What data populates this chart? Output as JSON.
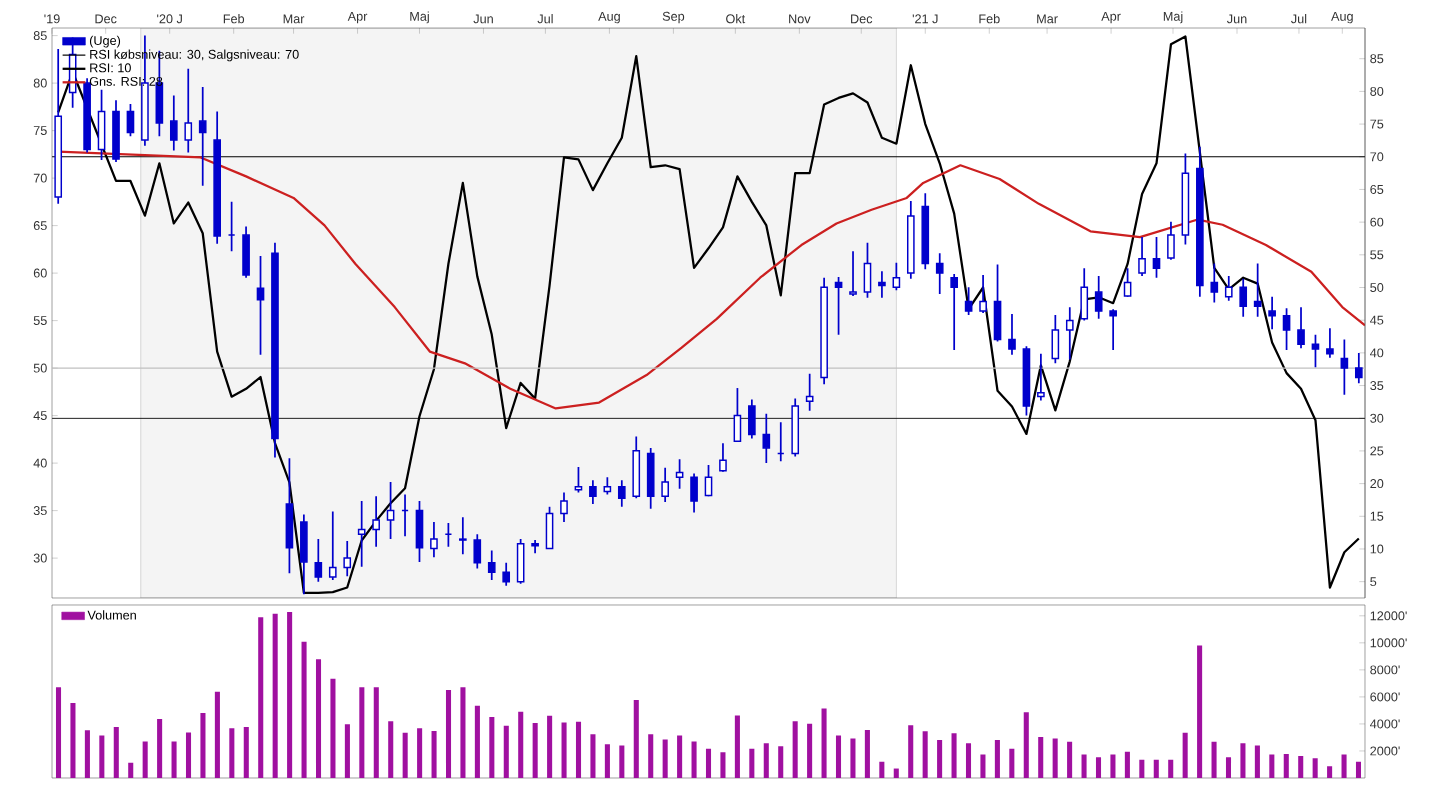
{
  "chart_data": [
    {
      "type": "candlestick",
      "x": [
        "2019-11-22",
        "2019-11-29",
        "2019-12-06",
        "2019-12-13",
        "2019-12-20",
        "2019-12-27",
        "2020-01-03",
        "2020-01-10",
        "2020-01-17",
        "2020-01-24",
        "2020-01-31",
        "2020-02-07",
        "2020-02-14",
        "2020-02-21",
        "2020-02-28",
        "2020-03-06",
        "2020-03-13",
        "2020-03-20",
        "2020-03-27",
        "2020-04-03",
        "2020-04-10",
        "2020-04-17",
        "2020-04-24",
        "2020-05-01",
        "2020-05-08",
        "2020-05-15",
        "2020-05-22",
        "2020-05-29",
        "2020-06-05",
        "2020-06-12",
        "2020-06-19",
        "2020-06-26",
        "2020-07-03",
        "2020-07-10",
        "2020-07-17",
        "2020-07-24",
        "2020-07-31",
        "2020-08-07",
        "2020-08-14",
        "2020-08-21",
        "2020-08-28",
        "2020-09-04",
        "2020-09-11",
        "2020-09-18",
        "2020-09-25",
        "2020-10-02",
        "2020-10-09",
        "2020-10-16",
        "2020-10-23",
        "2020-10-30",
        "2020-11-06",
        "2020-11-13",
        "2020-11-20",
        "2020-11-27",
        "2020-12-04",
        "2020-12-11",
        "2020-12-18",
        "2020-12-25",
        "2021-01-01",
        "2021-01-08",
        "2021-01-15",
        "2021-01-22",
        "2021-01-29",
        "2021-02-05",
        "2021-02-12",
        "2021-02-19",
        "2021-02-26",
        "2021-03-05",
        "2021-03-12",
        "2021-03-19",
        "2021-03-26",
        "2021-04-02",
        "2021-04-09",
        "2021-04-16",
        "2021-04-23",
        "2021-04-30",
        "2021-05-07",
        "2021-05-14",
        "2021-05-21",
        "2021-05-28",
        "2021-06-04",
        "2021-06-11",
        "2021-06-18",
        "2021-06-25",
        "2021-07-02",
        "2021-07-09",
        "2021-07-16",
        "2021-07-23",
        "2021-07-30",
        "2021-08-06",
        "2021-08-13"
      ],
      "xlim": [
        "2019-11-19",
        "2021-08-16"
      ],
      "xticks": [
        {
          "value": "2019-11-19",
          "label": "'19"
        },
        {
          "value": "2019-12-15",
          "label": "Dec"
        },
        {
          "value": "2020-01-15",
          "label": "'20 J"
        },
        {
          "value": "2020-02-15",
          "label": "Feb"
        },
        {
          "value": "2020-03-15",
          "label": "Mar"
        },
        {
          "value": "2020-04-15",
          "label": "Apr"
        },
        {
          "value": "2020-05-15",
          "label": "Maj"
        },
        {
          "value": "2020-06-15",
          "label": "Jun"
        },
        {
          "value": "2020-07-15",
          "label": "Jul"
        },
        {
          "value": "2020-08-15",
          "label": "Aug"
        },
        {
          "value": "2020-09-15",
          "label": "Sep"
        },
        {
          "value": "2020-10-15",
          "label": "Okt"
        },
        {
          "value": "2020-11-15",
          "label": "Nov"
        },
        {
          "value": "2020-12-15",
          "label": "Dec"
        },
        {
          "value": "2021-01-15",
          "label": "'21 J"
        },
        {
          "value": "2021-02-15",
          "label": "Feb"
        },
        {
          "value": "2021-03-15",
          "label": "Mar"
        },
        {
          "value": "2021-04-15",
          "label": "Apr"
        },
        {
          "value": "2021-05-15",
          "label": "Maj"
        },
        {
          "value": "2021-06-15",
          "label": "Jun"
        },
        {
          "value": "2021-07-15",
          "label": "Jul"
        },
        {
          "value": "2021-08-05",
          "label": "Aug"
        }
      ],
      "ylim": [
        25.8,
        85.8
      ],
      "yticks": [
        30,
        35,
        40,
        45,
        50,
        55,
        60,
        65,
        70,
        75,
        80,
        85
      ],
      "y2lim": [
        2.5,
        89.7
      ],
      "y2ticks": [
        5,
        10,
        15,
        20,
        25,
        30,
        35,
        40,
        45,
        50,
        55,
        60,
        65,
        70,
        75,
        80,
        85
      ],
      "legend": "top left",
      "bands": [
        {
          "axis": "x",
          "from": "2020-01-01",
          "to": "2021-01-01",
          "color": "#f4f4f4"
        }
      ],
      "ref_lines": [
        {
          "axis": "y2",
          "value": 30,
          "label": "RSI købsniveau: 30, Salgsniveau: 70",
          "color": "#000000"
        },
        {
          "axis": "y2",
          "value": 70,
          "color": "#000000"
        },
        {
          "axis": "y",
          "value": 50,
          "color": "#c0c0c0"
        }
      ],
      "series": [
        {
          "name": "(Uge)",
          "type": "candlestick",
          "color": "#0000cc",
          "ohlc": [
            [
              68,
              83.6,
              67.3,
              76.5
            ],
            [
              79,
              84.8,
              77.4,
              83
            ],
            [
              80,
              80.5,
              72.7,
              73
            ],
            [
              73,
              79.3,
              71.9,
              77
            ],
            [
              77,
              78.2,
              71.7,
              72
            ],
            [
              77,
              77.8,
              74.4,
              74.8
            ],
            [
              74,
              85,
              73.4,
              80
            ],
            [
              80,
              83.4,
              74.4,
              75.8
            ],
            [
              76,
              78.7,
              72.9,
              74
            ],
            [
              74,
              81.5,
              72.7,
              75.8
            ],
            [
              76,
              79.6,
              69.2,
              74.8
            ],
            [
              74,
              77,
              63.1,
              63.9
            ],
            [
              64,
              67.5,
              62.3,
              64
            ],
            [
              64,
              64.9,
              59.5,
              59.8
            ],
            [
              58.4,
              61.8,
              51.4,
              57.2
            ],
            [
              62.1,
              63.2,
              40.6,
              42.6
            ],
            [
              35.7,
              40.5,
              28.4,
              31.1
            ],
            [
              33.8,
              34.6,
              26.2,
              29.6
            ],
            [
              29.5,
              32,
              27.5,
              28
            ],
            [
              28,
              34.9,
              27.7,
              29
            ],
            [
              29,
              31.8,
              28.1,
              30
            ],
            [
              32.5,
              36,
              29.1,
              33
            ],
            [
              33,
              36.5,
              31.2,
              34
            ],
            [
              34,
              38,
              32,
              35
            ],
            [
              35,
              36.7,
              32.3,
              35
            ],
            [
              35,
              36,
              29.6,
              31.1
            ],
            [
              31,
              33.8,
              30.1,
              32
            ],
            [
              32.5,
              33.7,
              31.2,
              32.5
            ],
            [
              32,
              34.3,
              30.4,
              31.9
            ],
            [
              31.9,
              32.5,
              28.9,
              29.5
            ],
            [
              29.5,
              30.8,
              27.7,
              28.5
            ],
            [
              28.5,
              29.5,
              27.1,
              27.5
            ],
            [
              27.5,
              32,
              27.3,
              31.5
            ],
            [
              31.5,
              31.9,
              30.5,
              31.3
            ],
            [
              31,
              35.4,
              31,
              34.7
            ],
            [
              34.7,
              36.9,
              33.8,
              36
            ],
            [
              37.2,
              39.6,
              36.9,
              37.5
            ],
            [
              37.5,
              38.2,
              35.7,
              36.5
            ],
            [
              37,
              38.5,
              36.7,
              37.5
            ],
            [
              37.5,
              38.2,
              35.4,
              36.3
            ],
            [
              36.5,
              42.8,
              36.3,
              41.3
            ],
            [
              41,
              41.6,
              35.2,
              36.5
            ],
            [
              36.5,
              39.5,
              35.9,
              38
            ],
            [
              38.5,
              40.4,
              37.3,
              39
            ],
            [
              38.5,
              38.9,
              34.8,
              36
            ],
            [
              36.6,
              39.8,
              36.5,
              38.5
            ],
            [
              39.2,
              42.1,
              39.1,
              40.3
            ],
            [
              42.3,
              47.9,
              42.3,
              45
            ],
            [
              46,
              46.7,
              42.6,
              43
            ],
            [
              43,
              45.2,
              40,
              41.6
            ],
            [
              41,
              44.3,
              40.2,
              41
            ],
            [
              41,
              46.8,
              40.7,
              46
            ],
            [
              46.5,
              49.4,
              45.5,
              47
            ],
            [
              49,
              59.5,
              48.3,
              58.5
            ],
            [
              59,
              59.6,
              53.5,
              58.5
            ],
            [
              57.8,
              62.3,
              57.6,
              58
            ],
            [
              58,
              63.2,
              57.4,
              61
            ],
            [
              59,
              60.2,
              57.4,
              58.7
            ],
            [
              58.5,
              61.1,
              58.2,
              59.5
            ],
            [
              60,
              67.6,
              59.4,
              66
            ],
            [
              67,
              68.4,
              60.4,
              61
            ],
            [
              61,
              62.1,
              57.8,
              60
            ],
            [
              59.5,
              59.9,
              51.9,
              58.5
            ],
            [
              57,
              58.5,
              55.6,
              56
            ],
            [
              56,
              59.8,
              55.8,
              57
            ],
            [
              57,
              60.9,
              52.8,
              53
            ],
            [
              53,
              55.7,
              51.4,
              52
            ],
            [
              52,
              52.3,
              45,
              46
            ],
            [
              47,
              51.5,
              46.6,
              47.4
            ],
            [
              51,
              55.6,
              50.5,
              54
            ],
            [
              54,
              56.4,
              50.9,
              55
            ],
            [
              55.2,
              60.5,
              55,
              58.5
            ],
            [
              58,
              59.7,
              55.2,
              56
            ],
            [
              56,
              56.2,
              51.9,
              55.5
            ],
            [
              57.6,
              60.5,
              57.5,
              59
            ],
            [
              60,
              63.8,
              59.7,
              61.5
            ],
            [
              61.5,
              63.8,
              59.5,
              60.5
            ],
            [
              61.6,
              65.4,
              61.4,
              64
            ],
            [
              64,
              72.6,
              63,
              70.5
            ],
            [
              71,
              73.3,
              57.5,
              58.7
            ],
            [
              59,
              61,
              56.9,
              58
            ],
            [
              57.5,
              59.7,
              57.1,
              58.5
            ],
            [
              58.5,
              59.4,
              55.4,
              56.5
            ],
            [
              57,
              61,
              55.4,
              56.5
            ],
            [
              56,
              57.5,
              54.1,
              55.5
            ],
            [
              55.5,
              56.3,
              51.9,
              54
            ],
            [
              54,
              56.4,
              52.1,
              52.5
            ],
            [
              52.5,
              53.5,
              50.1,
              52
            ],
            [
              52,
              54.2,
              51.1,
              51.5
            ],
            [
              51,
              53,
              47.2,
              50
            ],
            [
              50,
              51.6,
              48.4,
              49
            ]
          ]
        },
        {
          "name": "RSI: 10",
          "type": "line",
          "axis": "y2",
          "color": "#000000",
          "values": [
            76.8,
            83,
            null,
            null,
            66.3,
            66.3,
            61,
            69,
            59.8,
            63,
            58.3,
            40.2,
            33.3,
            34.5,
            36.3,
            26.2,
            20.2,
            3.3,
            3.3,
            3.4,
            4.1,
            11.3,
            14.3,
            17,
            19.3,
            30.3,
            37.5,
            53.6,
            66,
            51.7,
            42.8,
            28.5,
            35.4,
            33,
            50.3,
            69.9,
            69.6,
            64.9,
            69,
            72.9,
            85.4,
            68.4,
            68.7,
            68.1,
            53,
            56,
            59.2,
            67,
            63.1,
            59.5,
            48.8,
            67.5,
            67.5,
            78,
            79,
            79.7,
            78.3,
            72.9,
            72,
            84,
            75,
            69,
            61.3,
            46.7,
            50,
            34.2,
            31.8,
            27.6,
            38.1,
            31.2,
            38.7,
            48.2,
            48.5,
            47.6,
            53.6,
            64.3,
            69,
            87.2,
            88.4,
            null,
            53,
            49.7,
            51.5,
            50.6,
            41.6,
            36.9,
            34.5,
            29.7,
            4.1,
            9.5,
            11.6
          ]
        },
        {
          "name": "Gns. RSI: 28",
          "type": "line",
          "axis": "y2",
          "color": "#cc2020",
          "x": [
            "2019-11-22",
            "2020-01-30",
            "2020-02-21",
            "2020-03-15",
            "2020-03-30",
            "2020-04-14",
            "2020-05-03",
            "2020-05-20",
            "2020-06-06",
            "2020-06-28",
            "2020-07-20",
            "2020-08-10",
            "2020-09-02",
            "2020-09-19",
            "2020-10-06",
            "2020-10-27",
            "2020-11-16",
            "2020-12-03",
            "2020-12-20",
            "2021-01-06",
            "2021-01-14",
            "2021-02-01",
            "2021-02-20",
            "2021-03-11",
            "2021-04-05",
            "2021-04-29",
            "2021-05-27",
            "2021-06-08",
            "2021-06-29",
            "2021-07-21",
            "2021-08-05",
            "2021-08-16"
          ],
          "values": [
            70.8,
            69.9,
            67,
            63.7,
            59.5,
            53.6,
            47,
            40.2,
            38.4,
            34.5,
            31.5,
            32.4,
            36.6,
            40.8,
            45.2,
            51.5,
            56.5,
            59.8,
            61.9,
            63.7,
            66,
            68.7,
            66.6,
            62.8,
            58.6,
            57.7,
            60.4,
            59.6,
            56.5,
            52.4,
            47,
            44.2
          ]
        }
      ]
    },
    {
      "type": "bar",
      "categories": [
        null,
        null,
        null,
        null,
        null,
        null,
        null,
        null,
        null,
        null,
        null,
        null,
        null,
        null,
        null,
        null,
        null,
        null,
        null,
        null,
        null,
        null,
        null,
        null,
        null,
        null,
        null,
        null,
        null,
        null,
        null,
        null,
        null,
        null,
        null,
        null,
        null,
        null,
        null,
        null,
        null,
        null,
        null,
        null,
        null,
        null,
        null,
        null,
        null,
        null,
        null,
        null,
        null,
        null,
        null,
        null,
        null,
        null,
        null,
        null,
        null,
        null,
        null,
        null,
        null,
        null,
        null,
        null,
        null,
        null,
        null,
        null,
        null,
        null,
        null,
        null,
        null,
        null,
        null,
        null,
        null,
        null,
        null,
        null,
        null,
        null,
        null,
        null,
        null,
        null,
        null
      ],
      "ylim": [
        0,
        12800
      ],
      "yticks": [
        {
          "value": 2000,
          "label": "2000'"
        },
        {
          "value": 4000,
          "label": "4000'"
        },
        {
          "value": 6000,
          "label": "6000'"
        },
        {
          "value": 8000,
          "label": "8000'"
        },
        {
          "value": 10000,
          "label": "10000'"
        },
        {
          "value": 12000,
          "label": "12000'"
        }
      ],
      "tick_labels": "y",
      "legend": "top left",
      "series": [
        {
          "name": "Volumen",
          "color": "#a010a0",
          "values": [
            6710,
            5540,
            3540,
            3140,
            3770,
            1130,
            2700,
            4370,
            2700,
            3370,
            4800,
            6380,
            3680,
            3770,
            11890,
            12160,
            12290,
            10080,
            8780,
            7350,
            3970,
            6710,
            6710,
            4200,
            3340,
            3680,
            3470,
            6510,
            6710,
            5340,
            4510,
            3870,
            4910,
            4070,
            4610,
            4100,
            4170,
            3230,
            2500,
            2400,
            5780,
            3230,
            2840,
            3140,
            2700,
            2160,
            1910,
            4620,
            2160,
            2580,
            2340,
            4200,
            4020,
            5140,
            3140,
            2930,
            3560,
            1210,
            700,
            3910,
            3450,
            2820,
            3310,
            2580,
            1730,
            2820,
            2160,
            4860,
            3040,
            2930,
            2680,
            1730,
            1530,
            1730,
            1950,
            1350,
            1350,
            1350,
            3350,
            9800,
            2680,
            1530,
            2580,
            2400,
            1730,
            1780,
            1630,
            1460,
            860,
            1730,
            1210
          ]
        }
      ]
    }
  ]
}
